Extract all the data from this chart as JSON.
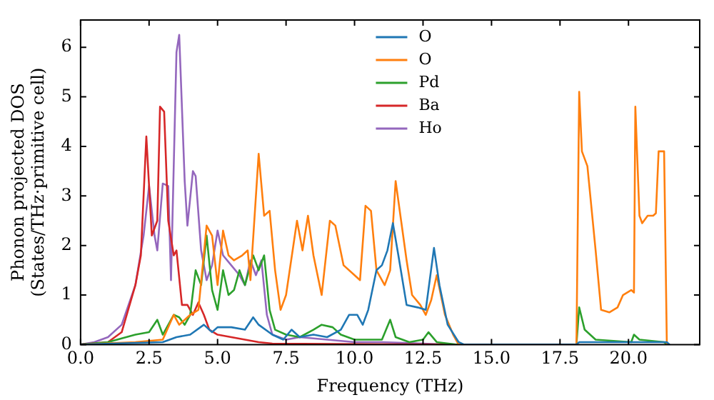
{
  "chart_data": {
    "type": "line",
    "xlabel": "Frequency (THz)",
    "ylabel": "Phonon projected DOS\n(States/THz·primitive cell)",
    "xlim": [
      0,
      22.6
    ],
    "ylim": [
      0,
      6.55
    ],
    "xticks": [
      {
        "value": 0,
        "label": "0.0"
      },
      {
        "value": 2.5,
        "label": "2.5"
      },
      {
        "value": 5,
        "label": "5.0"
      },
      {
        "value": 7.5,
        "label": "7.5"
      },
      {
        "value": 10,
        "label": "10.0"
      },
      {
        "value": 12.5,
        "label": "12.5"
      },
      {
        "value": 15,
        "label": "15.0"
      },
      {
        "value": 17.5,
        "label": "17.5"
      },
      {
        "value": 20,
        "label": "20.0"
      }
    ],
    "yticks": [
      0,
      1,
      2,
      3,
      4,
      5,
      6
    ],
    "grid": false,
    "legend": "top",
    "marker": "none",
    "line_style": "solid",
    "series": [
      {
        "name": "O",
        "color": "#1f77b4",
        "x": [
          0,
          3,
          3.5,
          4,
          4.5,
          4.8,
          5,
          5.5,
          6,
          6.3,
          6.5,
          7,
          7.4,
          7.7,
          8,
          8.5,
          9,
          9.5,
          9.8,
          10.1,
          10.3,
          10.5,
          10.8,
          11,
          11.2,
          11.4,
          11.6,
          11.9,
          12.3,
          12.6,
          12.9,
          13.1,
          13.4,
          13.8,
          14,
          18.1,
          18.2,
          21.4,
          21.5
        ],
        "values": [
          0,
          0.05,
          0.15,
          0.2,
          0.4,
          0.25,
          0.35,
          0.35,
          0.3,
          0.55,
          0.4,
          0.2,
          0.1,
          0.3,
          0.15,
          0.2,
          0.15,
          0.3,
          0.6,
          0.6,
          0.4,
          0.7,
          1.5,
          1.6,
          1.9,
          2.45,
          1.8,
          0.8,
          0.75,
          0.7,
          1.95,
          1.2,
          0.4,
          0.05,
          0,
          0,
          0.05,
          0.05,
          0
        ]
      },
      {
        "name": "O",
        "color": "#ff7f0e",
        "x": [
          0,
          2,
          3,
          3.4,
          3.6,
          4,
          4.3,
          4.6,
          4.8,
          5,
          5.2,
          5.4,
          5.6,
          5.9,
          6.1,
          6.2,
          6.5,
          6.7,
          6.9,
          7.1,
          7.3,
          7.5,
          7.9,
          8.1,
          8.3,
          8.5,
          8.8,
          9.1,
          9.3,
          9.6,
          10,
          10.2,
          10.4,
          10.6,
          10.8,
          11.1,
          11.3,
          11.5,
          11.7,
          11.9,
          12.1,
          12.4,
          12.6,
          12.8,
          13,
          13.3,
          13.6,
          13.8,
          18.1,
          18.2,
          18.3,
          18.5,
          18.8,
          19,
          19.3,
          19.6,
          19.8,
          20.1,
          20.2,
          20.25,
          20.4,
          20.5,
          20.7,
          20.9,
          21,
          21.1,
          21.3,
          21.4
        ],
        "values": [
          0,
          0.05,
          0.1,
          0.6,
          0.4,
          0.6,
          0.7,
          2.4,
          2.2,
          1.2,
          2.3,
          1.8,
          1.7,
          1.8,
          1.9,
          1.3,
          3.85,
          2.6,
          2.7,
          1.5,
          0.7,
          1,
          2.5,
          1.9,
          2.6,
          1.8,
          1,
          2.5,
          2.4,
          1.6,
          1.4,
          1.3,
          2.8,
          2.7,
          1.5,
          1.2,
          1.5,
          3.3,
          2.5,
          1.7,
          1,
          0.8,
          0.6,
          0.9,
          1.4,
          0.6,
          0.2,
          0,
          0,
          5.1,
          3.9,
          3.6,
          1.9,
          0.7,
          0.65,
          0.75,
          1,
          1.1,
          1.05,
          4.8,
          2.6,
          2.45,
          2.6,
          2.6,
          2.65,
          3.9,
          3.9,
          0
        ]
      },
      {
        "name": "Pd",
        "color": "#2ca02c",
        "x": [
          0,
          1,
          2,
          2.5,
          2.8,
          3,
          3.4,
          3.6,
          3.8,
          4,
          4.2,
          4.4,
          4.6,
          4.8,
          5,
          5.2,
          5.4,
          5.6,
          5.8,
          6,
          6.3,
          6.5,
          6.7,
          6.9,
          7.1,
          7.5,
          8,
          8.5,
          8.8,
          9.2,
          9.5,
          10,
          11,
          11.3,
          11.5,
          12,
          12.5,
          12.7,
          13,
          13.7,
          18.1,
          18.2,
          18.4,
          18.8,
          20.1,
          20.2,
          20.4,
          21.3,
          21.4
        ],
        "values": [
          0,
          0.05,
          0.2,
          0.25,
          0.5,
          0.2,
          0.6,
          0.55,
          0.4,
          0.6,
          1.5,
          1.2,
          2.2,
          1.1,
          0.7,
          1.5,
          1,
          1.1,
          1.5,
          1.2,
          1.8,
          1.5,
          1.8,
          0.7,
          0.3,
          0.2,
          0.15,
          0.3,
          0.4,
          0.35,
          0.2,
          0.1,
          0.1,
          0.5,
          0.15,
          0.05,
          0.1,
          0.25,
          0.05,
          0,
          0,
          0.75,
          0.3,
          0.1,
          0.05,
          0.2,
          0.1,
          0.05,
          0
        ]
      },
      {
        "name": "Ba",
        "color": "#d62728",
        "x": [
          0,
          1,
          1.5,
          2,
          2.2,
          2.4,
          2.6,
          2.8,
          2.9,
          3.05,
          3.2,
          3.4,
          3.5,
          3.7,
          3.9,
          4.1,
          4.3,
          4.5,
          4.7,
          5,
          5.5,
          6,
          6.5,
          7,
          13.7
        ],
        "values": [
          0,
          0.05,
          0.25,
          1.2,
          1.8,
          4.2,
          2.2,
          2.5,
          4.8,
          4.7,
          2.5,
          1.8,
          1.9,
          0.8,
          0.8,
          0.6,
          0.85,
          0.6,
          0.3,
          0.2,
          0.15,
          0.1,
          0.05,
          0.02,
          0
        ]
      },
      {
        "name": "Ho",
        "color": "#9467bd",
        "x": [
          0,
          0.5,
          1,
          1.5,
          2,
          2.3,
          2.5,
          2.7,
          2.8,
          3,
          3.2,
          3.3,
          3.5,
          3.6,
          3.8,
          3.9,
          4.1,
          4.2,
          4.4,
          4.6,
          4.8,
          5,
          5.2,
          5.5,
          5.8,
          6,
          6.2,
          6.4,
          6.6,
          6.8,
          7,
          7.5,
          8,
          9,
          10,
          11,
          12,
          13,
          13.7
        ],
        "values": [
          0,
          0.05,
          0.15,
          0.4,
          1.2,
          2.2,
          3.2,
          2.2,
          1.9,
          3.25,
          3.2,
          1.3,
          5.9,
          6.25,
          3.3,
          2.4,
          3.5,
          3.4,
          1.9,
          1.3,
          1.6,
          2.3,
          1.8,
          1.6,
          1.4,
          1.2,
          1.7,
          1.4,
          1.7,
          0.6,
          0.2,
          0.1,
          0.15,
          0.1,
          0.05,
          0.05,
          0.03,
          0.01,
          0
        ]
      }
    ]
  }
}
